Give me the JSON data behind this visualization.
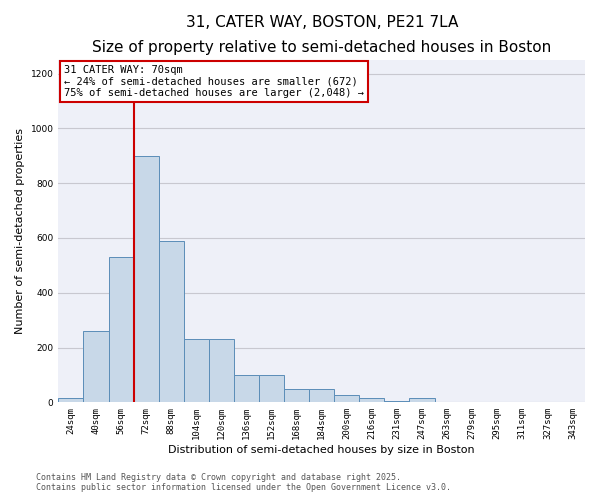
{
  "title1": "31, CATER WAY, BOSTON, PE21 7LA",
  "title2": "Size of property relative to semi-detached houses in Boston",
  "xlabel": "Distribution of semi-detached houses by size in Boston",
  "ylabel": "Number of semi-detached properties",
  "categories": [
    "24sqm",
    "40sqm",
    "56sqm",
    "72sqm",
    "88sqm",
    "104sqm",
    "120sqm",
    "136sqm",
    "152sqm",
    "168sqm",
    "184sqm",
    "200sqm",
    "216sqm",
    "231sqm",
    "247sqm",
    "263sqm",
    "279sqm",
    "295sqm",
    "311sqm",
    "327sqm",
    "343sqm"
  ],
  "values": [
    15,
    260,
    530,
    900,
    590,
    230,
    230,
    100,
    100,
    50,
    50,
    25,
    15,
    5,
    15,
    2,
    2,
    2,
    2,
    2,
    2
  ],
  "bar_color": "#c8d8e8",
  "bar_edge_color": "#5b8db8",
  "property_line_color": "#cc0000",
  "annotation_text": "31 CATER WAY: 70sqm\n← 24% of semi-detached houses are smaller (672)\n75% of semi-detached houses are larger (2,048) →",
  "annotation_box_color": "#cc0000",
  "ylim": [
    0,
    1250
  ],
  "yticks": [
    0,
    200,
    400,
    600,
    800,
    1000,
    1200
  ],
  "grid_color": "#c8c8d0",
  "bg_color": "#eef0f8",
  "footer1": "Contains HM Land Registry data © Crown copyright and database right 2025.",
  "footer2": "Contains public sector information licensed under the Open Government Licence v3.0.",
  "title_fontsize": 11,
  "subtitle_fontsize": 8.5,
  "tick_fontsize": 6.5,
  "label_fontsize": 8,
  "annotation_fontsize": 7.5,
  "footer_fontsize": 6
}
